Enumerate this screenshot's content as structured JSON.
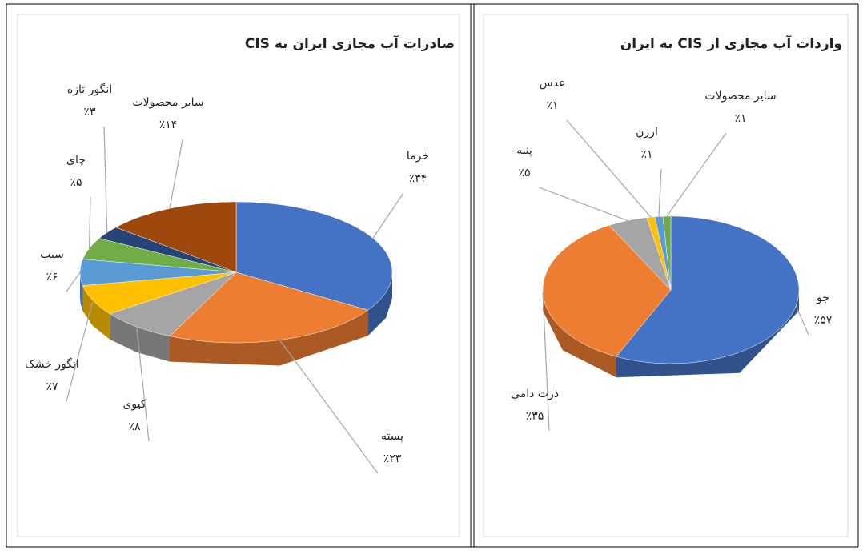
{
  "chart_data": [
    {
      "type": "pie",
      "title": "صادرات آب مجازی ایران به CIS",
      "categories": [
        "خرما",
        "پسته",
        "کیوی",
        "انگور خشک",
        "سیب",
        "چای",
        "انگور تازه",
        "سایر محصولات"
      ],
      "values": [
        34,
        23,
        8,
        7,
        6,
        5,
        3,
        14
      ],
      "value_labels": [
        "٪۳۴",
        "٪۲۳",
        "٪۸",
        "٪۷",
        "٪۶",
        "٪۵",
        "٪۳",
        "٪۱۴"
      ],
      "colors": [
        "#4472c4",
        "#ed7d31",
        "#a5a5a5",
        "#ffc000",
        "#5b9bd5",
        "#70ad47",
        "#264478",
        "#9e480e"
      ]
    },
    {
      "type": "pie",
      "title": "واردات آب مجازی از CIS به ایران",
      "categories": [
        "جو",
        "ذرت دامی",
        "پنبه",
        "عدس",
        "ارزن",
        "سایر محصولات"
      ],
      "values": [
        57,
        35,
        5,
        1,
        1,
        1
      ],
      "value_labels": [
        "٪۵۷",
        "٪۳۵",
        "٪۵",
        "٪۱",
        "٪۱",
        "٪۱"
      ],
      "colors": [
        "#4472c4",
        "#ed7d31",
        "#a5a5a5",
        "#ffc000",
        "#5b9bd5",
        "#70ad47"
      ]
    }
  ]
}
